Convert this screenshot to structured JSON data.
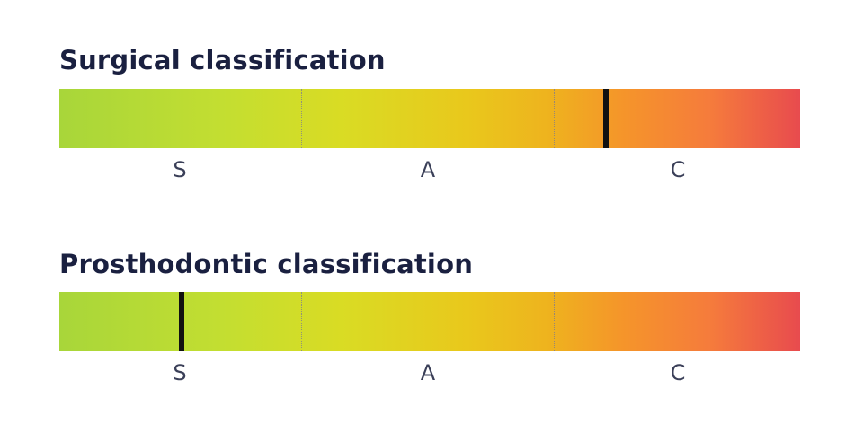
{
  "scales": [
    {
      "title": "Surgical classification",
      "categories": [
        "S",
        "A",
        "C"
      ],
      "marker_position": 0.738
    },
    {
      "title": "Prosthodontic classification",
      "categories": [
        "S",
        "A",
        "C"
      ],
      "marker_position": 0.165
    }
  ],
  "colors": {
    "gradient_start": "#a8d63a",
    "gradient_mid": "#e9c81c",
    "gradient_end": "#e84b4e",
    "marker": "#111111",
    "title_text": "#1a2040"
  }
}
